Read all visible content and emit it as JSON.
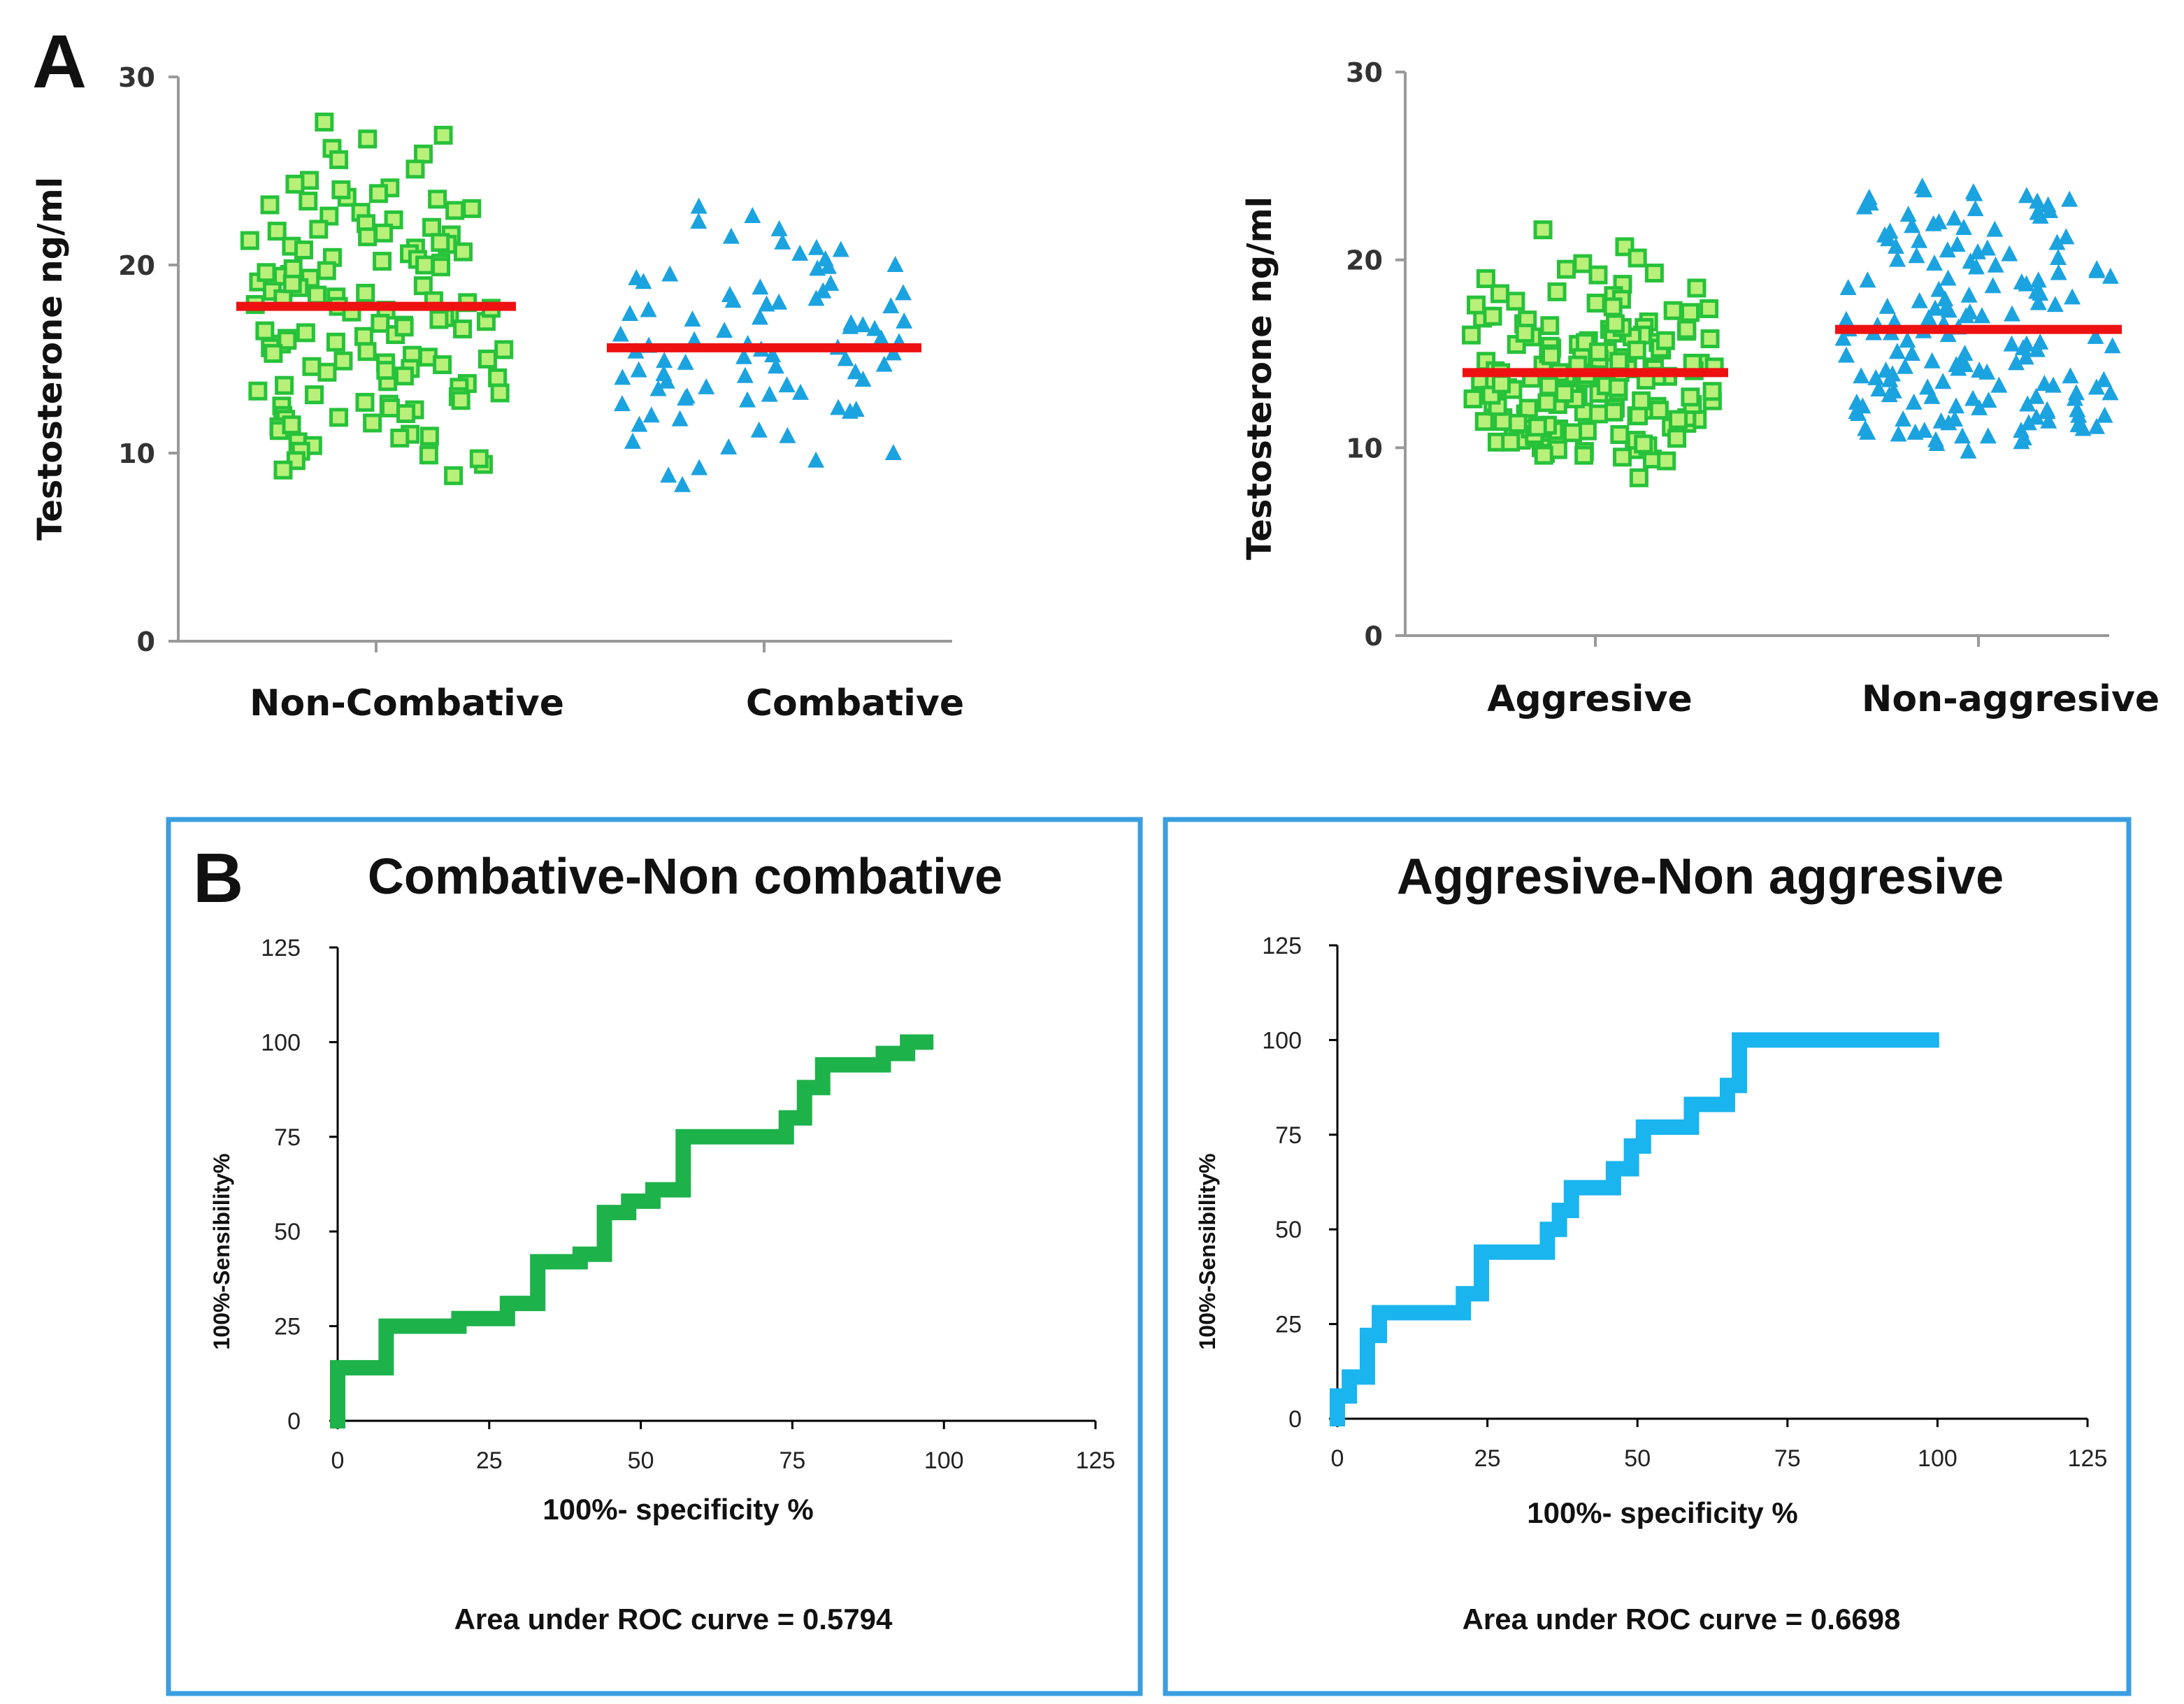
{
  "panel_labels": {
    "a": "A",
    "b": "B"
  },
  "colors": {
    "green_fill": "#b8f07a",
    "green_stroke": "#27c23a",
    "blue": "#1ba3e0",
    "red": "#ee1111",
    "roc_green": "#1db24a",
    "roc_blue": "#1ab4ef",
    "box_border": "#3a9ee0"
  },
  "chart_data": [
    {
      "type": "scatter",
      "id": "combative",
      "title": "",
      "ylabel": "Testosterone ng/ml",
      "ylim": [
        0,
        30
      ],
      "yticks": [
        "0",
        "10",
        "20",
        "30"
      ],
      "categories": [
        "Non-Combative",
        "Combative"
      ],
      "series": [
        {
          "name": "Non-Combative",
          "marker": "square",
          "mean": 17.8,
          "values": [
            27.6,
            26.9,
            26.7,
            26.2,
            25.9,
            25.6,
            25.1,
            24.5,
            24.3,
            24.1,
            23.8,
            23.6,
            23.4,
            23.2,
            23.0,
            22.8,
            22.6,
            22.4,
            22.2,
            22.0,
            21.9,
            21.8,
            21.6,
            21.5,
            21.3,
            21.1,
            21.0,
            20.9,
            20.8,
            20.6,
            20.4,
            20.3,
            20.1,
            20.0,
            19.9,
            19.7,
            19.5,
            19.4,
            19.3,
            19.1,
            18.9,
            18.8,
            18.6,
            18.4,
            18.3,
            18.2,
            18.0,
            17.9,
            17.8,
            17.6,
            17.5,
            17.4,
            17.2,
            17.1,
            16.9,
            16.8,
            16.6,
            16.5,
            16.4,
            16.2,
            16.1,
            15.9,
            15.8,
            15.6,
            15.5,
            15.4,
            15.2,
            15.1,
            14.9,
            14.8,
            14.6,
            14.5,
            14.3,
            14.1,
            14.0,
            13.8,
            13.7,
            13.5,
            13.3,
            13.2,
            13.0,
            12.8,
            12.6,
            12.5,
            12.3,
            12.1,
            12.0,
            11.8,
            11.6,
            11.4,
            11.2,
            11.0,
            10.8,
            10.6,
            10.4,
            10.1,
            9.9,
            9.6,
            9.4,
            9.1,
            8.8,
            12.4,
            16.3,
            19.6,
            21.7,
            15.0,
            18.5,
            13.6,
            22.9,
            17.0,
            11.5,
            20.7,
            14.4,
            9.7,
            24.0,
            16.0,
            19.0,
            12.7,
            18.1,
            15.3,
            21.2,
            10.9,
            17.7,
            13.1,
            20.2,
            14.7,
            23.5,
            16.7,
            11.9,
            19.8
          ]
        },
        {
          "name": "Combative",
          "marker": "triangle",
          "mean": 15.6,
          "values": [
            23.1,
            22.6,
            22.3,
            21.9,
            21.5,
            21.2,
            20.9,
            20.6,
            20.3,
            20.0,
            19.8,
            19.5,
            19.3,
            19.0,
            18.8,
            18.6,
            18.4,
            18.2,
            18.0,
            17.8,
            17.6,
            17.4,
            17.2,
            17.0,
            16.8,
            16.6,
            16.5,
            16.3,
            16.1,
            15.9,
            15.8,
            15.6,
            15.5,
            15.3,
            15.2,
            15.0,
            14.9,
            14.7,
            14.6,
            14.4,
            14.3,
            14.1,
            14.0,
            13.8,
            13.6,
            13.4,
            13.2,
            13.0,
            12.8,
            12.6,
            12.4,
            12.2,
            12.0,
            11.8,
            11.5,
            11.2,
            10.9,
            10.6,
            10.3,
            10.0,
            9.6,
            9.2,
            8.8,
            8.3,
            17.1,
            15.4,
            19.9,
            13.5,
            16.7,
            12.9,
            18.5,
            14.8,
            20.8,
            16.0,
            13.9,
            17.9,
            15.7,
            12.3,
            19.1,
            16.9,
            14.2,
            18.1,
            15.1,
            13.1
          ]
        }
      ]
    },
    {
      "type": "scatter",
      "id": "aggresive",
      "title": "",
      "ylabel": "Testosterone ng/ml",
      "ylim": [
        0,
        30
      ],
      "yticks": [
        "0",
        "10",
        "20",
        "30"
      ],
      "categories": [
        "Aggresive",
        "Non-aggresive"
      ],
      "series": [
        {
          "name": "Aggresive",
          "marker": "square",
          "mean": 14.0,
          "values": [
            21.6,
            20.7,
            20.1,
            19.8,
            19.5,
            19.2,
            19.0,
            18.7,
            18.5,
            18.3,
            18.1,
            17.9,
            17.7,
            17.5,
            17.4,
            17.2,
            17.0,
            16.9,
            16.7,
            16.6,
            16.4,
            16.3,
            16.1,
            16.0,
            15.9,
            15.7,
            15.6,
            15.5,
            15.3,
            15.2,
            15.1,
            14.9,
            14.8,
            14.7,
            14.6,
            14.5,
            14.3,
            14.2,
            14.1,
            14.0,
            13.9,
            13.8,
            13.7,
            13.5,
            13.4,
            13.3,
            13.2,
            13.1,
            13.0,
            12.9,
            12.8,
            12.7,
            12.6,
            12.5,
            12.4,
            12.3,
            12.2,
            12.1,
            12.0,
            11.9,
            11.8,
            11.7,
            11.6,
            11.5,
            11.4,
            11.3,
            11.2,
            11.1,
            11.0,
            10.9,
            10.8,
            10.7,
            10.6,
            10.5,
            10.4,
            10.3,
            10.2,
            10.1,
            10.0,
            9.9,
            9.8,
            9.7,
            9.6,
            9.5,
            9.4,
            9.3,
            8.4,
            15.8,
            14.4,
            13.6,
            16.2,
            12.6,
            11.6,
            17.3,
            13.0,
            14.9,
            12.0,
            15.4,
            10.6,
            16.8,
            13.3,
            14.6,
            11.2,
            15.0,
            12.9,
            17.6,
            10.9,
            14.2,
            13.8,
            16.5,
            12.3,
            11.9,
            15.6,
            14.0,
            13.1,
            10.3,
            16.0,
            12.7,
            14.7,
            11.4,
            13.5,
            15.2,
            12.2,
            17.0,
            14.1,
            10.8,
            13.7,
            15.9,
            11.7,
            12.4,
            14.3,
            9.9,
            16.4,
            13.2,
            11.0,
            15.3,
            12.8,
            14.5,
            10.5,
            13.9,
            16.6,
            11.5,
            12.5,
            14.8,
            15.5,
            10.1,
            13.4,
            11.8,
            17.8,
            12.1,
            14.0,
            15.7,
            10.7,
            13.6,
            11.3,
            16.1,
            12.6,
            14.9,
            10.4,
            13.0,
            15.1,
            11.1,
            12.9,
            14.4,
            16.3,
            10.2,
            13.3,
            9.6,
            12.0,
            18.2,
            19.3
          ]
        },
        {
          "name": "Non-aggresive",
          "marker": "triangle",
          "mean": 16.3,
          "values": [
            23.9,
            23.7,
            23.6,
            23.4,
            23.3,
            23.1,
            23.0,
            22.8,
            22.7,
            22.5,
            22.3,
            22.2,
            22.0,
            21.8,
            21.6,
            21.5,
            21.3,
            21.1,
            20.9,
            20.8,
            20.6,
            20.4,
            20.2,
            20.0,
            19.9,
            19.7,
            19.5,
            19.3,
            19.1,
            18.9,
            18.8,
            18.6,
            18.4,
            18.2,
            18.0,
            17.9,
            17.7,
            17.5,
            17.3,
            17.1,
            17.0,
            16.8,
            16.6,
            16.4,
            16.2,
            16.1,
            15.9,
            15.7,
            15.5,
            15.4,
            15.2,
            15.0,
            14.8,
            14.7,
            14.5,
            14.3,
            14.1,
            14.0,
            13.8,
            13.6,
            13.4,
            13.3,
            13.1,
            12.9,
            12.7,
            12.6,
            12.4,
            12.2,
            12.0,
            11.9,
            11.7,
            11.5,
            11.3,
            11.2,
            11.0,
            10.8,
            10.6,
            10.4,
            10.2,
            9.8,
            22.9,
            21.2,
            19.8,
            18.5,
            17.2,
            16.0,
            14.9,
            13.7,
            12.5,
            11.4,
            23.2,
            21.9,
            20.5,
            19.0,
            17.8,
            16.5,
            15.3,
            14.2,
            13.0,
            11.8,
            10.7,
            22.4,
            20.7,
            19.4,
            18.1,
            16.9,
            15.6,
            14.4,
            13.2,
            12.1,
            10.9,
            23.5,
            21.7,
            20.1,
            18.7,
            17.4,
            16.3,
            15.1,
            13.9,
            12.8,
            11.6,
            10.5,
            22.6,
            21.0,
            19.6,
            18.3,
            17.0,
            15.8,
            14.6,
            13.5,
            12.3,
            11.1,
            10.3,
            20.3,
            18.9,
            17.6,
            16.7,
            15.5,
            14.4,
            13.3,
            12.2,
            11.0,
            16.1,
            15.0,
            13.8,
            12.6,
            11.4,
            17.5,
            14.1,
            12.9,
            11.9,
            10.6,
            13.6,
            12.4,
            11.3,
            10.8,
            12.0,
            11.5,
            10.9,
            13.2,
            12.7,
            11.7
          ]
        }
      ]
    },
    {
      "type": "line",
      "id": "roc_combative",
      "title": "Combative-Non combative",
      "xlabel": "100%- specificity %",
      "ylabel": "100%-Sensibility%",
      "xlim": [
        0,
        125
      ],
      "ylim": [
        0,
        125
      ],
      "xticks": [
        "0",
        "25",
        "50",
        "75",
        "100",
        "125"
      ],
      "yticks": [
        "0",
        "25",
        "50",
        "75",
        "100",
        "125"
      ],
      "annotation": "Area under ROC curve = 0.5794",
      "x": [
        0,
        0,
        2,
        2,
        8,
        8,
        20,
        20,
        28,
        28,
        33,
        33,
        36,
        36,
        40,
        40,
        44,
        44,
        48,
        48,
        52,
        52,
        57,
        57,
        66,
        66,
        74,
        74,
        77,
        77,
        80,
        80,
        86,
        86,
        90,
        90,
        94,
        94,
        97
      ],
      "y": [
        0,
        14,
        14,
        14,
        14,
        25,
        25,
        27,
        27,
        31,
        31,
        42,
        42,
        42,
        42,
        44,
        44,
        55,
        55,
        58,
        58,
        61,
        61,
        75,
        75,
        75,
        75,
        80,
        80,
        88,
        88,
        94,
        94,
        94,
        94,
        97,
        97,
        100,
        100
      ]
    },
    {
      "type": "line",
      "id": "roc_aggresive",
      "title": "Aggresive-Non aggresive",
      "xlabel": "100%- specificity %",
      "ylabel": "100%-Sensibility%",
      "xlim": [
        0,
        125
      ],
      "ylim": [
        0,
        125
      ],
      "xticks": [
        "0",
        "25",
        "50",
        "75",
        "100",
        "125"
      ],
      "yticks": [
        "0",
        "25",
        "50",
        "75",
        "100",
        "125"
      ],
      "annotation": "Area under ROC curve = 0.6698",
      "x": [
        0,
        0,
        2,
        2,
        5,
        5,
        7,
        7,
        21,
        21,
        24,
        24,
        35,
        35,
        37,
        37,
        39,
        39,
        46,
        46,
        49,
        49,
        51,
        51,
        55,
        55,
        59,
        59,
        62,
        62,
        65,
        65,
        67,
        67,
        99
      ],
      "y": [
        0,
        6,
        6,
        11,
        11,
        22,
        22,
        28,
        28,
        33,
        33,
        44,
        44,
        50,
        50,
        55,
        55,
        61,
        61,
        66,
        66,
        72,
        72,
        77,
        77,
        77,
        77,
        83,
        83,
        83,
        83,
        88,
        88,
        100,
        100
      ]
    }
  ]
}
